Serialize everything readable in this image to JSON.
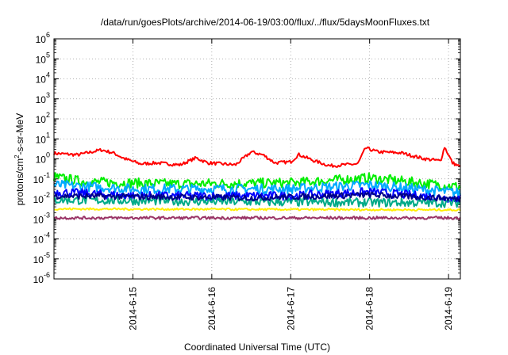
{
  "chart_data": {
    "type": "line",
    "title": "/data/run/goesPlots/archive/2014-06-19/03:00/flux/../flux/5daysMoonFluxes.txt",
    "xlabel": "Coordinated Universal Time (UTC)",
    "ylabel_base": "protons/cm",
    "ylabel_sup": "2",
    "ylabel_rest": "-s-sr-MeV",
    "xlim": [
      0,
      5.15
    ],
    "ylim_exp": [
      -6,
      6
    ],
    "yscale": "log",
    "grid": true,
    "x_ticks": [
      {
        "label": "2014-6-15",
        "x": 1.0
      },
      {
        "label": "2014-6-16",
        "x": 2.0
      },
      {
        "label": "2014-6-17",
        "x": 3.0
      },
      {
        "label": "2014-6-18",
        "x": 4.0
      },
      {
        "label": "2014-6-19",
        "x": 5.0
      }
    ],
    "y_ticks": [
      {
        "base": "10",
        "exp": "6",
        "value": 6
      },
      {
        "base": "10",
        "exp": "5",
        "value": 5
      },
      {
        "base": "10",
        "exp": "4",
        "value": 4
      },
      {
        "base": "10",
        "exp": "3",
        "value": 3
      },
      {
        "base": "10",
        "exp": "2",
        "value": 2
      },
      {
        "base": "10",
        "exp": "1",
        "value": 1
      },
      {
        "base": "10",
        "exp": "0",
        "value": 0
      },
      {
        "base": "10",
        "exp": "-1",
        "value": -1
      },
      {
        "base": "10",
        "exp": "-2",
        "value": -2
      },
      {
        "base": "10",
        "exp": "-3",
        "value": -3
      },
      {
        "base": "10",
        "exp": "-4",
        "value": -4
      },
      {
        "base": "10",
        "exp": "-5",
        "value": -5
      },
      {
        "base": "10",
        "exp": "-6",
        "value": -6
      }
    ],
    "series": [
      {
        "color": "#ff0000",
        "noise": 0.08,
        "points": [
          [
            0,
            0.28
          ],
          [
            0.3,
            0.2
          ],
          [
            0.6,
            0.45
          ],
          [
            0.75,
            0.3
          ],
          [
            0.9,
            0.0
          ],
          [
            1.1,
            -0.25
          ],
          [
            1.3,
            -0.2
          ],
          [
            1.6,
            -0.3
          ],
          [
            1.8,
            0.05
          ],
          [
            1.95,
            -0.2
          ],
          [
            2.3,
            -0.3
          ],
          [
            2.5,
            0.35
          ],
          [
            2.65,
            0.2
          ],
          [
            2.8,
            -0.2
          ],
          [
            3.0,
            -0.15
          ],
          [
            3.1,
            0.22
          ],
          [
            3.3,
            -0.1
          ],
          [
            3.5,
            -0.35
          ],
          [
            3.85,
            -0.25
          ],
          [
            3.95,
            0.55
          ],
          [
            4.1,
            0.35
          ],
          [
            4.4,
            0.3
          ],
          [
            4.7,
            0.0
          ],
          [
            4.9,
            -0.1
          ],
          [
            4.95,
            0.6
          ],
          [
            5.05,
            -0.2
          ],
          [
            5.15,
            -0.4
          ]
        ]
      },
      {
        "color": "#00ee00",
        "noise": 0.25,
        "points": [
          [
            0,
            -0.9
          ],
          [
            0.4,
            -1.15
          ],
          [
            1.5,
            -1.25
          ],
          [
            3.0,
            -1.2
          ],
          [
            4.0,
            -0.95
          ],
          [
            5.15,
            -1.4
          ]
        ]
      },
      {
        "color": "#00aaff",
        "noise": 0.25,
        "points": [
          [
            0,
            -1.3
          ],
          [
            1.0,
            -1.5
          ],
          [
            3.0,
            -1.5
          ],
          [
            4.0,
            -1.3
          ],
          [
            5.15,
            -1.7
          ]
        ]
      },
      {
        "color": "#0000ff",
        "noise": 0.22,
        "points": [
          [
            0,
            -1.65
          ],
          [
            1.0,
            -1.85
          ],
          [
            3.0,
            -1.85
          ],
          [
            4.0,
            -1.65
          ],
          [
            5.15,
            -2.0
          ]
        ]
      },
      {
        "color": "#00aa88",
        "noise": 0.22,
        "points": [
          [
            0,
            -2.05
          ],
          [
            2.5,
            -2.15
          ],
          [
            5.15,
            -2.2
          ]
        ]
      },
      {
        "color": "#000088",
        "noise": 0.15,
        "points": [
          [
            0,
            -1.85
          ],
          [
            2.5,
            -1.95
          ],
          [
            4.0,
            -1.8
          ],
          [
            5.15,
            -2.0
          ]
        ]
      },
      {
        "color": "#ffee00",
        "noise": 0.05,
        "points": [
          [
            0,
            -2.5
          ],
          [
            5.15,
            -2.55
          ]
        ]
      },
      {
        "color": "#993366",
        "noise": 0.07,
        "points": [
          [
            0,
            -2.95
          ],
          [
            5.15,
            -2.95
          ]
        ]
      }
    ]
  }
}
